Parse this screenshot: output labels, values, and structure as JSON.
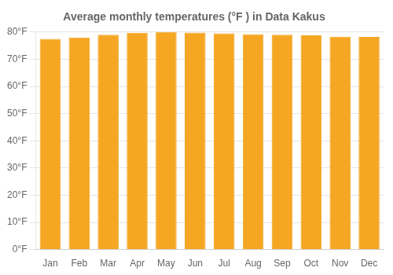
{
  "chart_data": {
    "type": "bar",
    "title": "Average monthly temperatures (°F ) in Data Kakus",
    "categories": [
      "Jan",
      "Feb",
      "Mar",
      "Apr",
      "May",
      "Jun",
      "Jul",
      "Aug",
      "Sep",
      "Oct",
      "Nov",
      "Dec"
    ],
    "values": [
      77.5,
      78.0,
      79.0,
      79.7,
      80.0,
      79.8,
      79.5,
      79.2,
      79.0,
      78.8,
      78.3,
      78.2
    ],
    "color": "#F5A623",
    "ylim": [
      0,
      80
    ],
    "yticks": [
      {
        "value": 0,
        "label": "0°F"
      },
      {
        "value": 10,
        "label": "10°F"
      },
      {
        "value": 20,
        "label": "20°F"
      },
      {
        "value": 30,
        "label": "30°F"
      },
      {
        "value": 40,
        "label": "40°F"
      },
      {
        "value": 50,
        "label": "50°F"
      },
      {
        "value": 60,
        "label": "60°F"
      },
      {
        "value": 70,
        "label": "70°F"
      },
      {
        "value": 80,
        "label": "80°F"
      }
    ],
    "grid": true
  }
}
